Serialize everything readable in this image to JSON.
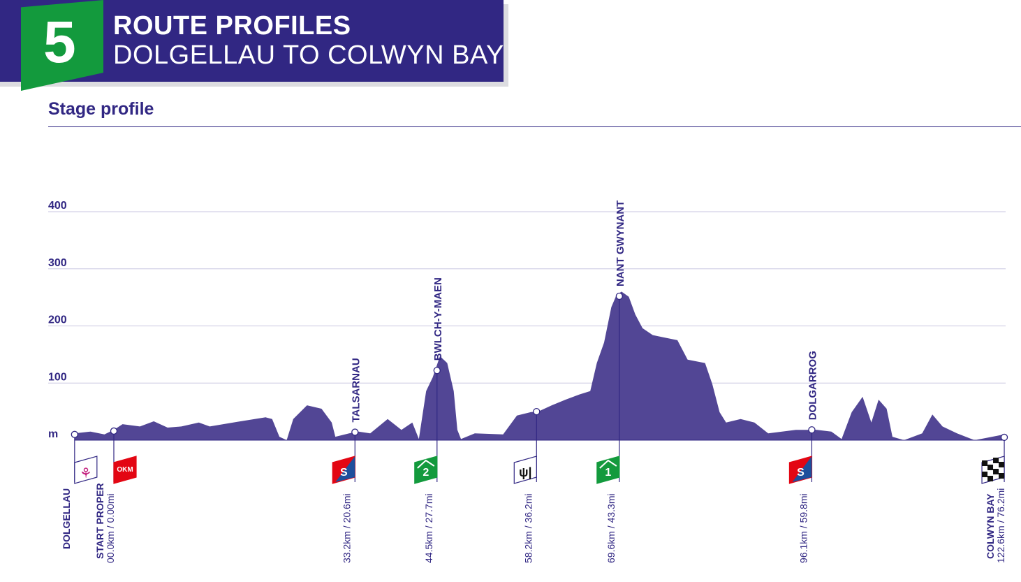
{
  "header": {
    "stage_number": "5",
    "title": "ROUTE PROFILES",
    "route": "DOLGELLAU TO COLWYN BAY",
    "section": "Stage profile"
  },
  "colors": {
    "primary": "#312783",
    "profile_fill": "#524695",
    "green": "#139a3d",
    "red": "#e30613",
    "gridline": "#c8c6e0"
  },
  "chart_data": {
    "type": "area",
    "title": "Stage profile",
    "xlabel": "km",
    "ylabel": "m",
    "ylim": [
      0,
      400
    ],
    "xlim": [
      -5.4,
      122.6
    ],
    "y_ticks": [
      {
        "value": 0,
        "label": "m"
      },
      {
        "value": 100,
        "label": "100"
      },
      {
        "value": 200,
        "label": "200"
      },
      {
        "value": 300,
        "label": "300"
      },
      {
        "value": 400,
        "label": "400"
      }
    ],
    "grid": true,
    "profile": [
      [
        -5.4,
        12
      ],
      [
        -3.2,
        15
      ],
      [
        -1.3,
        10
      ],
      [
        0,
        18
      ],
      [
        1.2,
        28
      ],
      [
        3.6,
        24
      ],
      [
        5.5,
        33
      ],
      [
        7.4,
        22
      ],
      [
        9.3,
        24
      ],
      [
        11.7,
        31
      ],
      [
        13.2,
        24
      ],
      [
        17.0,
        32
      ],
      [
        20.9,
        40
      ],
      [
        21.8,
        37
      ],
      [
        22.8,
        6
      ],
      [
        23.8,
        0
      ],
      [
        24.7,
        37
      ],
      [
        26.6,
        61
      ],
      [
        28.6,
        55
      ],
      [
        30.0,
        31
      ],
      [
        30.5,
        6
      ],
      [
        32.4,
        12
      ],
      [
        33.7,
        15
      ],
      [
        35.3,
        12
      ],
      [
        37.7,
        37
      ],
      [
        39.6,
        18
      ],
      [
        41.1,
        31
      ],
      [
        42.0,
        2
      ],
      [
        43.0,
        86
      ],
      [
        43.9,
        110
      ],
      [
        44.9,
        147
      ],
      [
        45.9,
        135
      ],
      [
        46.8,
        86
      ],
      [
        47.3,
        18
      ],
      [
        47.8,
        2
      ],
      [
        49.7,
        12
      ],
      [
        53.6,
        10
      ],
      [
        55.5,
        43
      ],
      [
        57.4,
        49
      ],
      [
        58.6,
        51
      ],
      [
        60.3,
        61
      ],
      [
        62.2,
        71
      ],
      [
        64.1,
        80
      ],
      [
        65.6,
        86
      ],
      [
        66.5,
        135
      ],
      [
        67.5,
        171
      ],
      [
        68.5,
        233
      ],
      [
        69.2,
        254
      ],
      [
        69.9,
        260
      ],
      [
        70.9,
        251
      ],
      [
        71.8,
        220
      ],
      [
        72.8,
        196
      ],
      [
        74.2,
        184
      ],
      [
        75.7,
        180
      ],
      [
        77.6,
        175
      ],
      [
        79.0,
        141
      ],
      [
        81.4,
        135
      ],
      [
        82.4,
        98
      ],
      [
        83.4,
        49
      ],
      [
        84.3,
        31
      ],
      [
        86.3,
        37
      ],
      [
        88.2,
        31
      ],
      [
        90.1,
        12
      ],
      [
        93.9,
        18
      ],
      [
        96.8,
        18
      ],
      [
        98.8,
        15
      ],
      [
        100.2,
        2
      ],
      [
        101.6,
        49
      ],
      [
        103.1,
        76
      ],
      [
        104.3,
        31
      ],
      [
        105.3,
        71
      ],
      [
        106.4,
        55
      ],
      [
        107.2,
        6
      ],
      [
        108.8,
        0
      ],
      [
        111.3,
        12
      ],
      [
        112.7,
        45
      ],
      [
        114.1,
        24
      ],
      [
        116.1,
        12
      ],
      [
        118.5,
        0
      ],
      [
        122.6,
        10
      ]
    ],
    "markers": [
      {
        "km": -5.4,
        "elev": 10,
        "icon": "start-flag",
        "bottom_name": "DOLGELLAU",
        "bottom_dist": "",
        "top_label": ""
      },
      {
        "km": 0,
        "elev": 16,
        "icon": "okm-flag",
        "flag_text": "OKM",
        "bottom_name": "START PROPER",
        "bottom_dist": "00.0km / 0.00mi",
        "top_label": ""
      },
      {
        "km": 33.2,
        "elev": 14,
        "icon": "sprint-flag",
        "flag_text": "S",
        "bottom_name": "",
        "bottom_dist": "33.2km / 20.6mi",
        "top_label": "TALSARNAU"
      },
      {
        "km": 44.5,
        "elev": 122,
        "icon": "climb-cat2-flag",
        "flag_text": "2",
        "bottom_name": "",
        "bottom_dist": "44.5km / 27.7mi",
        "top_label": "BWLCH-Y-MAEN"
      },
      {
        "km": 58.2,
        "elev": 50,
        "icon": "feed-flag",
        "bottom_name": "",
        "bottom_dist": "58.2km / 36.2mi",
        "top_label": ""
      },
      {
        "km": 69.6,
        "elev": 252,
        "icon": "climb-cat1-flag",
        "flag_text": "1",
        "bottom_name": "",
        "bottom_dist": "69.6km / 43.3mi",
        "top_label": "NANT GWYNANT"
      },
      {
        "km": 96.1,
        "elev": 18,
        "icon": "sprint-flag",
        "flag_text": "S",
        "bottom_name": "",
        "bottom_dist": "96.1km / 59.8mi",
        "top_label": "DOLGARROG"
      },
      {
        "km": 122.6,
        "elev": 5,
        "icon": "finish-flag",
        "bottom_name": "COLWYN BAY",
        "bottom_dist": "122.6km / 76.2mi",
        "top_label": ""
      }
    ]
  }
}
